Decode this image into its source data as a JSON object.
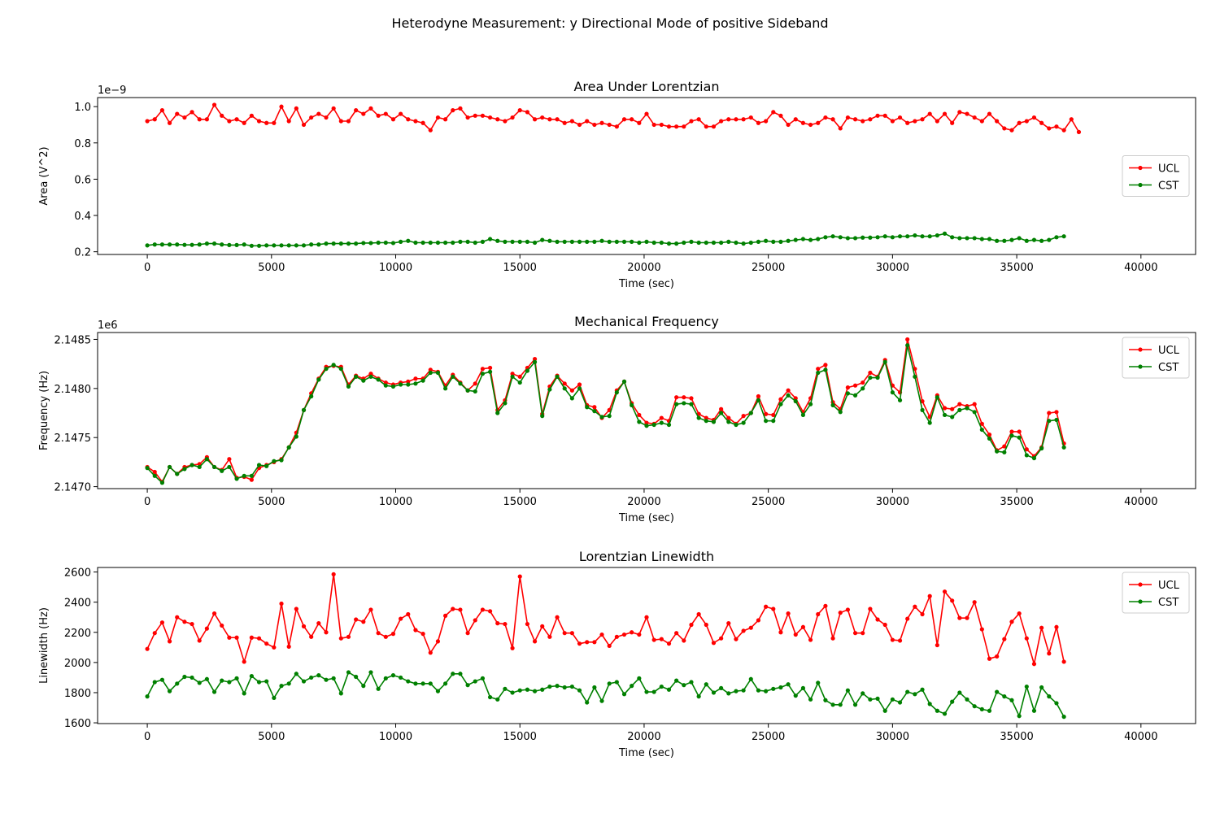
{
  "figure": {
    "suptitle": "Heterodyne Measurement: y Directional Mode of positive Sideband"
  },
  "colors": {
    "UCL": "#ff0000",
    "CST": "#008000"
  },
  "chart_data": [
    {
      "type": "line",
      "title": "Area Under Lorentzian",
      "xlabel": "Time (sec)",
      "ylabel": "Area (V^2)",
      "offset_text": "1e−9",
      "xlim": [
        -2000,
        42200
      ],
      "ylim": [
        0.185,
        1.05
      ],
      "xticks": [
        0,
        5000,
        10000,
        15000,
        20000,
        25000,
        30000,
        35000,
        40000
      ],
      "yticks": [
        0.2,
        0.4,
        0.6,
        0.8,
        1.0
      ],
      "ytick_labels": [
        "0.2",
        "0.4",
        "0.6",
        "0.8",
        "1.0"
      ],
      "grid": false,
      "legend": "center-right",
      "x_start": 0,
      "x_step": 300,
      "series": [
        {
          "name": "UCL",
          "color": "#ff0000",
          "values": [
            0.92,
            0.93,
            0.98,
            0.91,
            0.96,
            0.94,
            0.97,
            0.93,
            0.93,
            1.01,
            0.95,
            0.92,
            0.93,
            0.91,
            0.95,
            0.92,
            0.91,
            0.91,
            1.0,
            0.92,
            0.99,
            0.9,
            0.94,
            0.96,
            0.94,
            0.99,
            0.92,
            0.92,
            0.98,
            0.96,
            0.99,
            0.95,
            0.96,
            0.93,
            0.96,
            0.93,
            0.92,
            0.91,
            0.87,
            0.94,
            0.93,
            0.98,
            0.99,
            0.94,
            0.95,
            0.95,
            0.94,
            0.93,
            0.92,
            0.94,
            0.98,
            0.97,
            0.93,
            0.94,
            0.93,
            0.93,
            0.91,
            0.92,
            0.9,
            0.92,
            0.9,
            0.91,
            0.9,
            0.89,
            0.93,
            0.93,
            0.91,
            0.96,
            0.9,
            0.9,
            0.89,
            0.89,
            0.89,
            0.92,
            0.93,
            0.89,
            0.89,
            0.92,
            0.93,
            0.93,
            0.93,
            0.94,
            0.91,
            0.92,
            0.97,
            0.95,
            0.9,
            0.93,
            0.91,
            0.9,
            0.91,
            0.94,
            0.93,
            0.88,
            0.94,
            0.93,
            0.92,
            0.93,
            0.95,
            0.95,
            0.92,
            0.94,
            0.91,
            0.92,
            0.93,
            0.96,
            0.92,
            0.96,
            0.91,
            0.97,
            0.96,
            0.94,
            0.92,
            0.96,
            0.92,
            0.88,
            0.87,
            0.91,
            0.92,
            0.94,
            0.91,
            0.88,
            0.89,
            0.87,
            0.93,
            0.86
          ]
        },
        {
          "name": "CST",
          "color": "#008000",
          "values": [
            0.235,
            0.24,
            0.24,
            0.24,
            0.24,
            0.238,
            0.238,
            0.24,
            0.245,
            0.245,
            0.24,
            0.237,
            0.237,
            0.24,
            0.233,
            0.233,
            0.235,
            0.235,
            0.235,
            0.235,
            0.235,
            0.235,
            0.24,
            0.24,
            0.245,
            0.245,
            0.245,
            0.245,
            0.245,
            0.248,
            0.248,
            0.25,
            0.25,
            0.248,
            0.255,
            0.26,
            0.25,
            0.25,
            0.25,
            0.25,
            0.25,
            0.25,
            0.255,
            0.255,
            0.25,
            0.255,
            0.27,
            0.26,
            0.255,
            0.255,
            0.255,
            0.255,
            0.25,
            0.265,
            0.26,
            0.255,
            0.255,
            0.255,
            0.255,
            0.255,
            0.255,
            0.26,
            0.255,
            0.255,
            0.255,
            0.255,
            0.25,
            0.255,
            0.25,
            0.25,
            0.245,
            0.245,
            0.25,
            0.255,
            0.25,
            0.25,
            0.25,
            0.25,
            0.255,
            0.25,
            0.245,
            0.25,
            0.255,
            0.26,
            0.255,
            0.255,
            0.26,
            0.265,
            0.27,
            0.265,
            0.27,
            0.28,
            0.285,
            0.28,
            0.275,
            0.275,
            0.278,
            0.278,
            0.28,
            0.285,
            0.28,
            0.285,
            0.285,
            0.29,
            0.285,
            0.285,
            0.29,
            0.3,
            0.28,
            0.275,
            0.275,
            0.275,
            0.27,
            0.27,
            0.26,
            0.26,
            0.265,
            0.275,
            0.26,
            0.265,
            0.26,
            0.265,
            0.28,
            0.285
          ]
        }
      ]
    },
    {
      "type": "line",
      "title": "Mechanical Frequency",
      "xlabel": "Time (sec)",
      "ylabel": "Frequency (Hz)",
      "offset_text": "1e6",
      "xlim": [
        -2000,
        42200
      ],
      "ylim": [
        2.14698,
        2.14857
      ],
      "xticks": [
        0,
        5000,
        10000,
        15000,
        20000,
        25000,
        30000,
        35000,
        40000
      ],
      "yticks": [
        2.147,
        2.1475,
        2.148,
        2.1485
      ],
      "ytick_labels": [
        "2.1470",
        "2.1475",
        "2.1480",
        "2.1485"
      ],
      "grid": false,
      "legend": "top-right",
      "x_start": 0,
      "x_step": 300,
      "series": [
        {
          "name": "UCL",
          "color": "#ff0000",
          "values": [
            2.1472,
            2.14715,
            2.14705,
            2.1472,
            2.14713,
            2.1472,
            2.14722,
            2.14723,
            2.1473,
            2.1472,
            2.14717,
            2.14728,
            2.14709,
            2.1471,
            2.14707,
            2.14719,
            2.14722,
            2.14725,
            2.14728,
            2.1474,
            2.14755,
            2.14778,
            2.14795,
            2.1481,
            2.14822,
            2.14823,
            2.14822,
            2.14804,
            2.14813,
            2.1481,
            2.14815,
            2.1481,
            2.14806,
            2.14804,
            2.14806,
            2.14807,
            2.1481,
            2.1481,
            2.14819,
            2.14817,
            2.14803,
            2.14814,
            2.14806,
            2.14798,
            2.14805,
            2.1482,
            2.14821,
            2.14778,
            2.14788,
            2.14815,
            2.14812,
            2.14821,
            2.1483,
            2.14774,
            2.14802,
            2.14813,
            2.14805,
            2.14798,
            2.14804,
            2.14783,
            2.14781,
            2.1477,
            2.14778,
            2.14798,
            2.14807,
            2.14785,
            2.14773,
            2.14765,
            2.14764,
            2.1477,
            2.14767,
            2.14791,
            2.14791,
            2.1479,
            2.14774,
            2.1477,
            2.14768,
            2.14779,
            2.1477,
            2.14764,
            2.14772,
            2.14775,
            2.14792,
            2.14774,
            2.14773,
            2.14789,
            2.14798,
            2.1479,
            2.14776,
            2.1479,
            2.1482,
            2.14824,
            2.14786,
            2.14779,
            2.14801,
            2.14803,
            2.14806,
            2.14816,
            2.14812,
            2.14829,
            2.14803,
            2.14796,
            2.1485,
            2.1482,
            2.14787,
            2.14771,
            2.14793,
            2.1478,
            2.14779,
            2.14784,
            2.14782,
            2.14784,
            2.14764,
            2.14753,
            2.14737,
            2.14741,
            2.14756,
            2.14756,
            2.14738,
            2.14731,
            2.1474,
            2.14775,
            2.14776,
            2.14744
          ]
        },
        {
          "name": "CST",
          "color": "#008000",
          "values": [
            2.14719,
            2.14711,
            2.14704,
            2.1472,
            2.14713,
            2.14718,
            2.14722,
            2.1472,
            2.14728,
            2.1472,
            2.14716,
            2.1472,
            2.14708,
            2.14711,
            2.14711,
            2.14722,
            2.14721,
            2.14726,
            2.14727,
            2.1474,
            2.14751,
            2.14778,
            2.14792,
            2.14809,
            2.1482,
            2.14824,
            2.1482,
            2.14802,
            2.14812,
            2.14808,
            2.14812,
            2.14809,
            2.14803,
            2.14802,
            2.14804,
            2.14804,
            2.14805,
            2.14808,
            2.14816,
            2.14816,
            2.148,
            2.14812,
            2.14805,
            2.14798,
            2.14797,
            2.14815,
            2.14817,
            2.14775,
            2.14785,
            2.14812,
            2.14806,
            2.14818,
            2.14827,
            2.14772,
            2.14799,
            2.14812,
            2.148,
            2.1479,
            2.148,
            2.14781,
            2.14777,
            2.14771,
            2.14772,
            2.14796,
            2.14807,
            2.14783,
            2.14766,
            2.14762,
            2.14763,
            2.14765,
            2.14763,
            2.14784,
            2.14785,
            2.14784,
            2.1477,
            2.14767,
            2.14766,
            2.14775,
            2.14766,
            2.14763,
            2.14765,
            2.14775,
            2.14788,
            2.14767,
            2.14767,
            2.14784,
            2.14793,
            2.14787,
            2.14773,
            2.14784,
            2.14816,
            2.14819,
            2.14783,
            2.14776,
            2.14795,
            2.14793,
            2.148,
            2.14811,
            2.14811,
            2.14827,
            2.14796,
            2.14788,
            2.14844,
            2.14812,
            2.14778,
            2.14765,
            2.14791,
            2.14773,
            2.14771,
            2.14778,
            2.1478,
            2.14776,
            2.14758,
            2.14749,
            2.14736,
            2.14735,
            2.14752,
            2.1475,
            2.14732,
            2.14729,
            2.14739,
            2.14767,
            2.14768,
            2.1474
          ]
        }
      ]
    },
    {
      "type": "line",
      "title": "Lorentzian Linewidth",
      "xlabel": "Time (sec)",
      "ylabel": "Linewidth (Hz)",
      "xlim": [
        -2000,
        42200
      ],
      "ylim": [
        1595,
        2630
      ],
      "xticks": [
        0,
        5000,
        10000,
        15000,
        20000,
        25000,
        30000,
        35000,
        40000
      ],
      "yticks": [
        1600,
        1800,
        2000,
        2200,
        2400,
        2600
      ],
      "ytick_labels": [
        "1600",
        "1800",
        "2000",
        "2200",
        "2400",
        "2600"
      ],
      "grid": false,
      "legend": "top-right",
      "x_start": 0,
      "x_step": 300,
      "series": [
        {
          "name": "UCL",
          "color": "#ff0000",
          "values": [
            2090,
            2195,
            2265,
            2140,
            2300,
            2270,
            2255,
            2145,
            2225,
            2325,
            2245,
            2165,
            2165,
            2005,
            2165,
            2160,
            2125,
            2100,
            2390,
            2105,
            2355,
            2240,
            2170,
            2260,
            2200,
            2585,
            2160,
            2170,
            2285,
            2270,
            2350,
            2195,
            2170,
            2190,
            2290,
            2320,
            2215,
            2190,
            2065,
            2140,
            2310,
            2355,
            2350,
            2195,
            2280,
            2350,
            2340,
            2260,
            2255,
            2095,
            2570,
            2255,
            2140,
            2240,
            2170,
            2300,
            2195,
            2195,
            2125,
            2135,
            2135,
            2185,
            2110,
            2170,
            2185,
            2200,
            2185,
            2300,
            2150,
            2155,
            2125,
            2195,
            2145,
            2250,
            2320,
            2250,
            2130,
            2160,
            2260,
            2155,
            2210,
            2230,
            2280,
            2370,
            2355,
            2200,
            2325,
            2185,
            2235,
            2150,
            2320,
            2375,
            2160,
            2330,
            2350,
            2195,
            2195,
            2355,
            2285,
            2250,
            2150,
            2145,
            2290,
            2370,
            2320,
            2440,
            2115,
            2470,
            2410,
            2295,
            2295,
            2400,
            2220,
            2025,
            2040,
            2155,
            2270,
            2325,
            2160,
            1990,
            2230,
            2060,
            2235,
            2005
          ]
        },
        {
          "name": "CST",
          "color": "#008000",
          "values": [
            1775,
            1870,
            1885,
            1810,
            1860,
            1905,
            1900,
            1865,
            1890,
            1805,
            1880,
            1870,
            1895,
            1795,
            1910,
            1870,
            1875,
            1765,
            1845,
            1860,
            1925,
            1875,
            1900,
            1915,
            1885,
            1895,
            1795,
            1935,
            1905,
            1845,
            1935,
            1825,
            1895,
            1915,
            1900,
            1875,
            1860,
            1860,
            1860,
            1810,
            1860,
            1925,
            1925,
            1850,
            1875,
            1895,
            1770,
            1755,
            1825,
            1800,
            1815,
            1820,
            1810,
            1820,
            1840,
            1845,
            1835,
            1840,
            1815,
            1735,
            1835,
            1745,
            1860,
            1870,
            1790,
            1845,
            1895,
            1805,
            1805,
            1840,
            1820,
            1880,
            1850,
            1870,
            1775,
            1855,
            1800,
            1830,
            1795,
            1810,
            1815,
            1890,
            1815,
            1810,
            1825,
            1835,
            1855,
            1780,
            1830,
            1755,
            1865,
            1750,
            1720,
            1720,
            1815,
            1720,
            1795,
            1755,
            1760,
            1680,
            1755,
            1735,
            1805,
            1790,
            1820,
            1725,
            1680,
            1660,
            1740,
            1800,
            1755,
            1710,
            1690,
            1680,
            1805,
            1775,
            1750,
            1645,
            1840,
            1680,
            1835,
            1775,
            1730,
            1640
          ]
        }
      ]
    }
  ]
}
